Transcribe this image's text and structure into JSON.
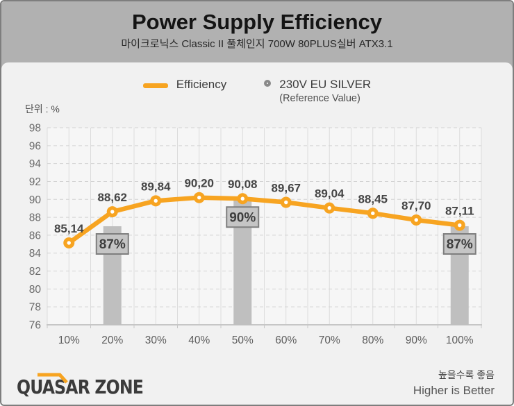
{
  "header": {
    "title": "Power Supply Efficiency",
    "subtitle": "마이크로닉스 Classic II 풀체인지 700W 80PLUS실버 ATX3.1"
  },
  "legend": {
    "efficiency_label": "Efficiency",
    "reference_label": "230V EU SILVER",
    "reference_sublabel": "(Reference Value)"
  },
  "axis": {
    "unit_label": "단위 : %"
  },
  "chart_data": {
    "type": "line",
    "title": "Power Supply Efficiency",
    "categories": [
      "10%",
      "20%",
      "30%",
      "40%",
      "50%",
      "60%",
      "70%",
      "80%",
      "90%",
      "100%"
    ],
    "series": [
      {
        "name": "Efficiency",
        "type": "line",
        "color": "#f7a421",
        "values": [
          85.14,
          88.62,
          89.84,
          90.2,
          90.08,
          89.67,
          89.04,
          88.45,
          87.7,
          87.11
        ],
        "labels": [
          "85,14",
          "88,62",
          "89,84",
          "90,20",
          "90,08",
          "89,67",
          "89,04",
          "88,45",
          "87,70",
          "87,11"
        ]
      },
      {
        "name": "230V EU SILVER (Reference Value)",
        "type": "bar",
        "color": "#bfbfbf",
        "values": [
          null,
          87,
          null,
          null,
          90,
          null,
          null,
          null,
          null,
          87
        ],
        "labels": [
          null,
          "87%",
          null,
          null,
          "90%",
          null,
          null,
          null,
          null,
          "87%"
        ]
      }
    ],
    "ylim": [
      76,
      98
    ],
    "yticks": [
      98,
      96,
      94,
      92,
      90,
      88,
      86,
      84,
      82,
      80,
      78,
      76
    ],
    "ylabel": "단위 : %",
    "grid": true,
    "legend_position": "top",
    "colors": {
      "plot_bg": "#f6f6f6",
      "grid_v": "#dcdcdc",
      "grid_h": "#d2d2d2",
      "axis": "#c6c6c6",
      "ref_box_bg": "#c5c5c5",
      "ref_box_border": "#7e7e7e",
      "point_label": "#454545",
      "tick_label": "#5d5d5d"
    }
  },
  "footer": {
    "logo": "QUASAR ZONE",
    "note_korean": "높을수록 좋음",
    "note_english": "Higher is Better",
    "logo_accent_color": "#f7a421"
  }
}
